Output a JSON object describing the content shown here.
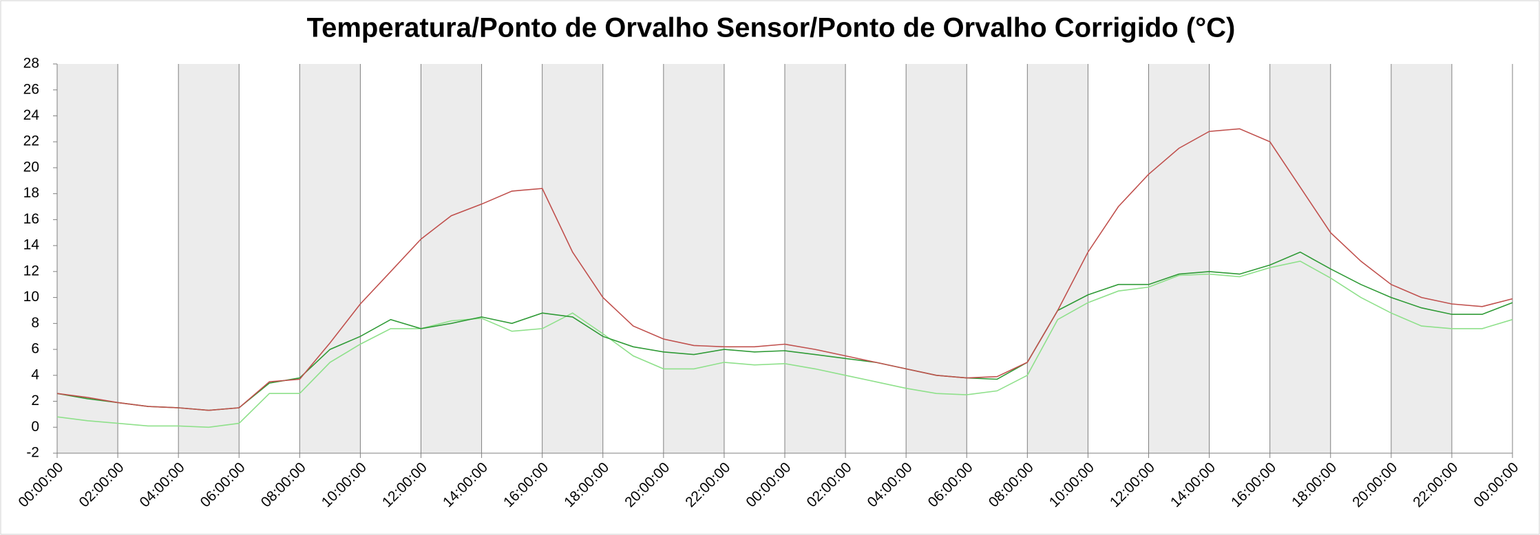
{
  "chart_data": {
    "type": "line",
    "title": "Temperatura/Ponto de Orvalho Sensor/Ponto de Orvalho Corrigido (°C)",
    "categories": [
      "00:00:00",
      null,
      "02:00:00",
      null,
      "04:00:00",
      null,
      "06:00:00",
      null,
      "08:00:00",
      null,
      "10:00:00",
      null,
      "12:00:00",
      null,
      "14:00:00",
      null,
      "16:00:00",
      null,
      "18:00:00",
      null,
      "20:00:00",
      null,
      "22:00:00",
      null,
      "00:00:00",
      null,
      "02:00:00",
      null,
      "04:00:00",
      null,
      "06:00:00",
      null,
      "08:00:00",
      null,
      "10:00:00",
      null,
      "12:00:00",
      null,
      "14:00:00",
      null,
      "16:00:00",
      null,
      "18:00:00",
      null,
      "20:00:00",
      null,
      "22:00:00",
      null,
      "00:00:00"
    ],
    "series": [
      {
        "color": "#c0504d",
        "values": [
          2.6,
          2.3,
          1.9,
          1.6,
          1.5,
          1.3,
          1.5,
          3.5,
          3.7,
          6.5,
          9.5,
          12,
          14.5,
          16.3,
          17.2,
          18.2,
          18.4,
          13.5,
          10,
          7.8,
          6.8,
          6.3,
          6.2,
          6.2,
          6.4,
          6.0,
          5.5,
          5.0,
          4.5,
          4.0,
          3.8,
          3.9,
          5.0,
          9,
          13.5,
          17,
          19.5,
          21.5,
          22.8,
          23.0,
          22.0,
          18.5,
          15,
          12.8,
          11,
          10,
          9.5,
          9.3,
          9.9
        ]
      },
      {
        "color": "#2e9a35",
        "values": [
          2.6,
          2.2,
          1.9,
          1.6,
          1.5,
          1.3,
          1.5,
          3.4,
          3.8,
          6.0,
          7.0,
          8.3,
          7.6,
          8.0,
          8.5,
          8.0,
          8.8,
          8.5,
          7.0,
          6.2,
          5.8,
          5.6,
          6.0,
          5.8,
          5.9,
          5.6,
          5.3,
          5.0,
          4.5,
          4.0,
          3.8,
          3.7,
          5.0,
          9,
          10.2,
          11,
          11,
          11.8,
          12,
          11.8,
          12.5,
          13.5,
          12.2,
          11,
          10,
          9.2,
          8.7,
          8.7,
          9.6
        ]
      },
      {
        "color": "#8ee08a",
        "values": [
          0.8,
          0.5,
          0.3,
          0.1,
          0.1,
          0.0,
          0.3,
          2.6,
          2.6,
          5,
          6.4,
          7.6,
          7.6,
          8.2,
          8.4,
          7.4,
          7.6,
          8.8,
          7.2,
          5.5,
          4.5,
          4.5,
          5.0,
          4.8,
          4.9,
          4.5,
          4.0,
          3.5,
          3.0,
          2.6,
          2.5,
          2.8,
          4.0,
          8.3,
          9.6,
          10.5,
          10.8,
          11.7,
          11.8,
          11.6,
          12.3,
          12.8,
          11.5,
          10,
          8.8,
          7.8,
          7.6,
          7.6,
          8.3
        ]
      }
    ],
    "ylim": [
      -2,
      28
    ],
    "yticks": [
      -2,
      0,
      2,
      4,
      6,
      8,
      10,
      12,
      14,
      16,
      18,
      20,
      22,
      24,
      26,
      28
    ],
    "grid": "x",
    "band_shading": "#ececec"
  }
}
